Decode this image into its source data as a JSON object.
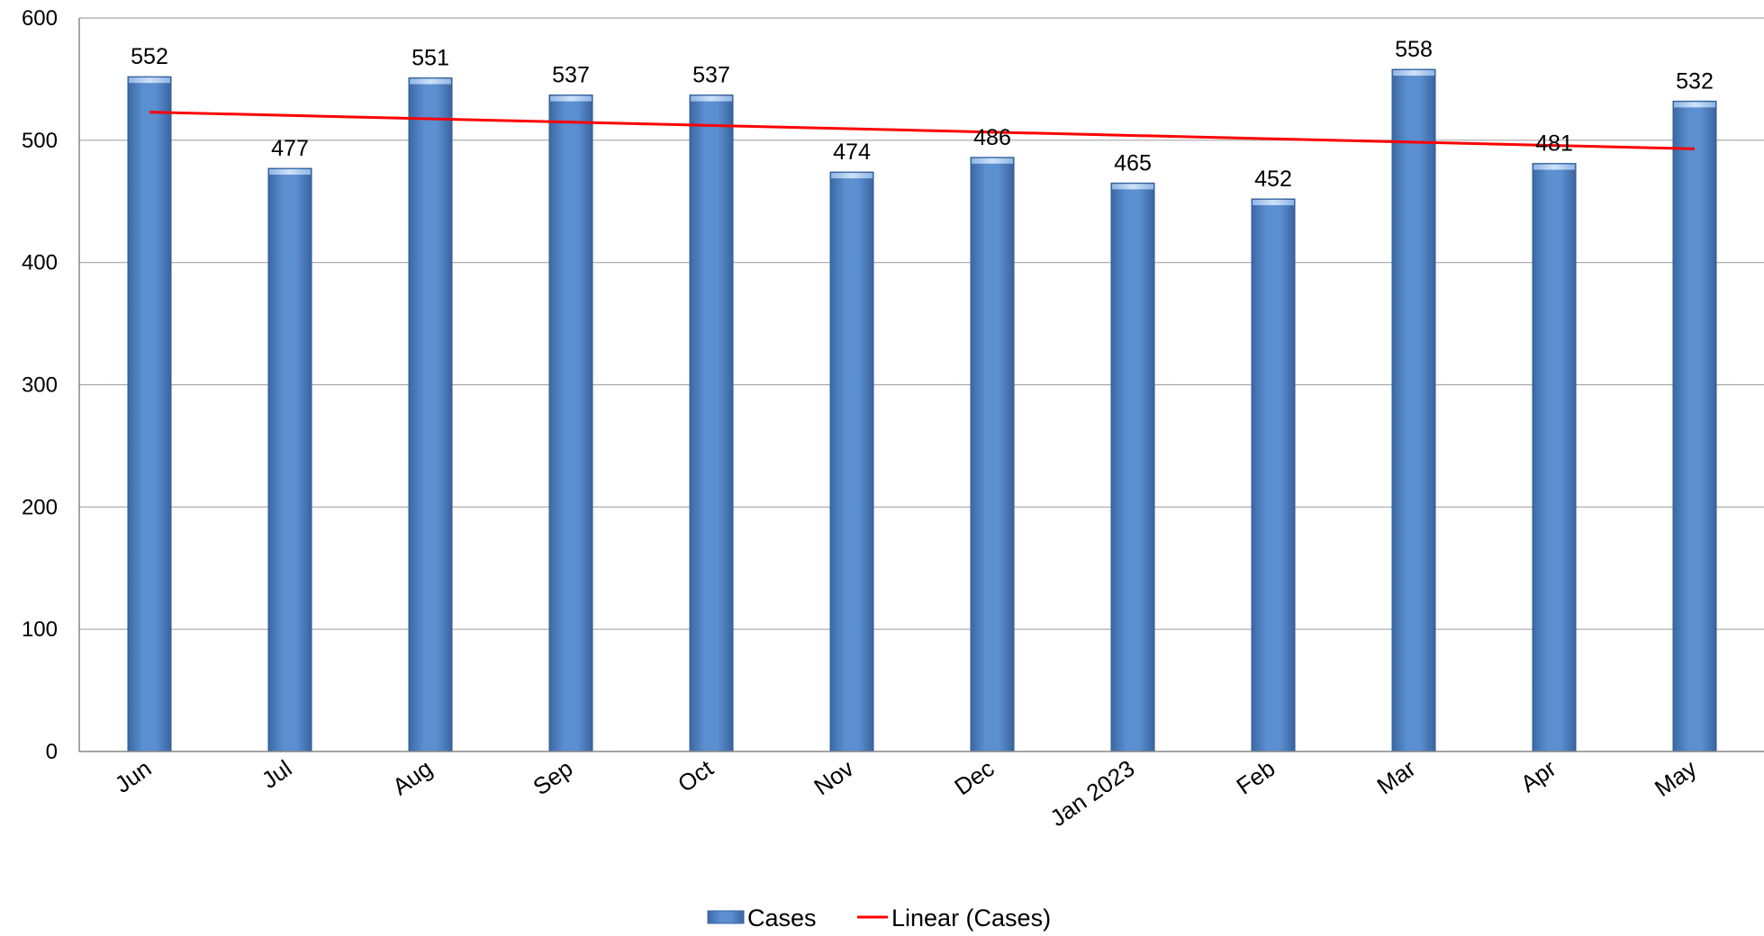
{
  "chart_data": {
    "type": "bar",
    "categories": [
      "Jun",
      "Jul",
      "Aug",
      "Sep",
      "Oct",
      "Nov",
      "Dec",
      "Jan  2023",
      "Feb",
      "Mar",
      "Apr",
      "May"
    ],
    "series": [
      {
        "name": "Cases",
        "values": [
          552,
          477,
          551,
          537,
          537,
          474,
          486,
          465,
          452,
          558,
          481,
          532
        ],
        "color": "#4F81BD"
      }
    ],
    "trendline": {
      "name": "Linear (Cases)",
      "type": "linear",
      "color": "#FF0000",
      "start_value": 523,
      "end_value": 493
    },
    "y_ticks": [
      "0",
      "100",
      "200",
      "300",
      "400",
      "500",
      "600"
    ],
    "ylim": [
      0,
      600
    ],
    "grid": true,
    "legend_position": "bottom-center",
    "title": "",
    "xlabel": "",
    "ylabel": ""
  }
}
